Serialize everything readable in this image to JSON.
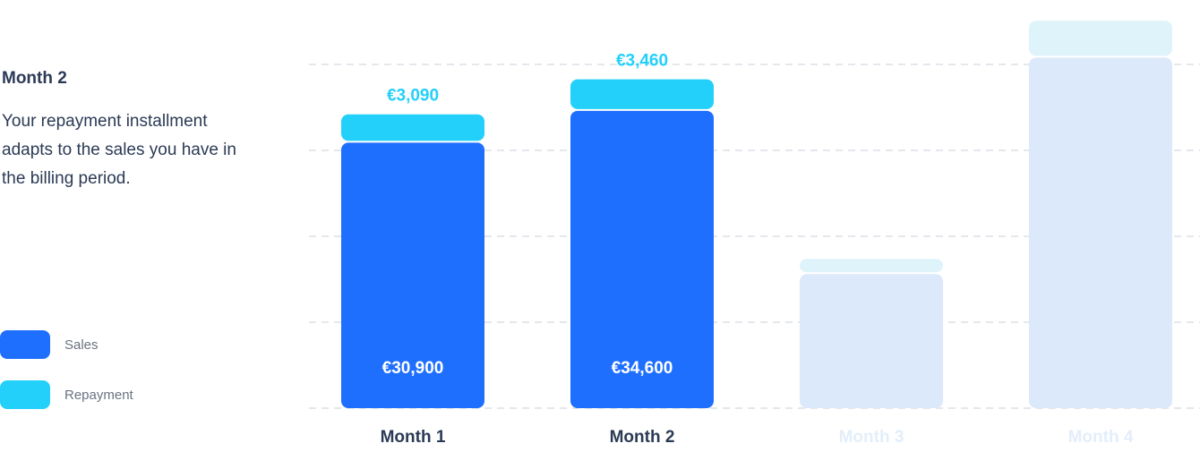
{
  "panel": {
    "title": "Month 2",
    "text": "Your repayment installment adapts to the sales you have in the billing period."
  },
  "chart_data": {
    "type": "stacked-bar",
    "categories": [
      "Month 1",
      "Month 2",
      "Month 3",
      "Month 4"
    ],
    "active": [
      true,
      true,
      false,
      false
    ],
    "series": [
      {
        "name": "Sales",
        "color": "#1f6fff",
        "faded_color": "#dce9fb",
        "values": [
          30900,
          34600,
          15600,
          40800
        ],
        "value_labels": [
          "€30,900",
          "€34,600",
          null,
          null
        ]
      },
      {
        "name": "Repayment",
        "color": "#22d0fa",
        "faded_color": "#dff3fb",
        "values": [
          3090,
          3460,
          1560,
          4080
        ],
        "value_labels": [
          "€3,090",
          "€3,460",
          null,
          null
        ]
      }
    ],
    "ylim": [
      0,
      40000
    ],
    "yticks": [
      0,
      10000,
      20000,
      30000,
      40000
    ],
    "grid": true
  }
}
